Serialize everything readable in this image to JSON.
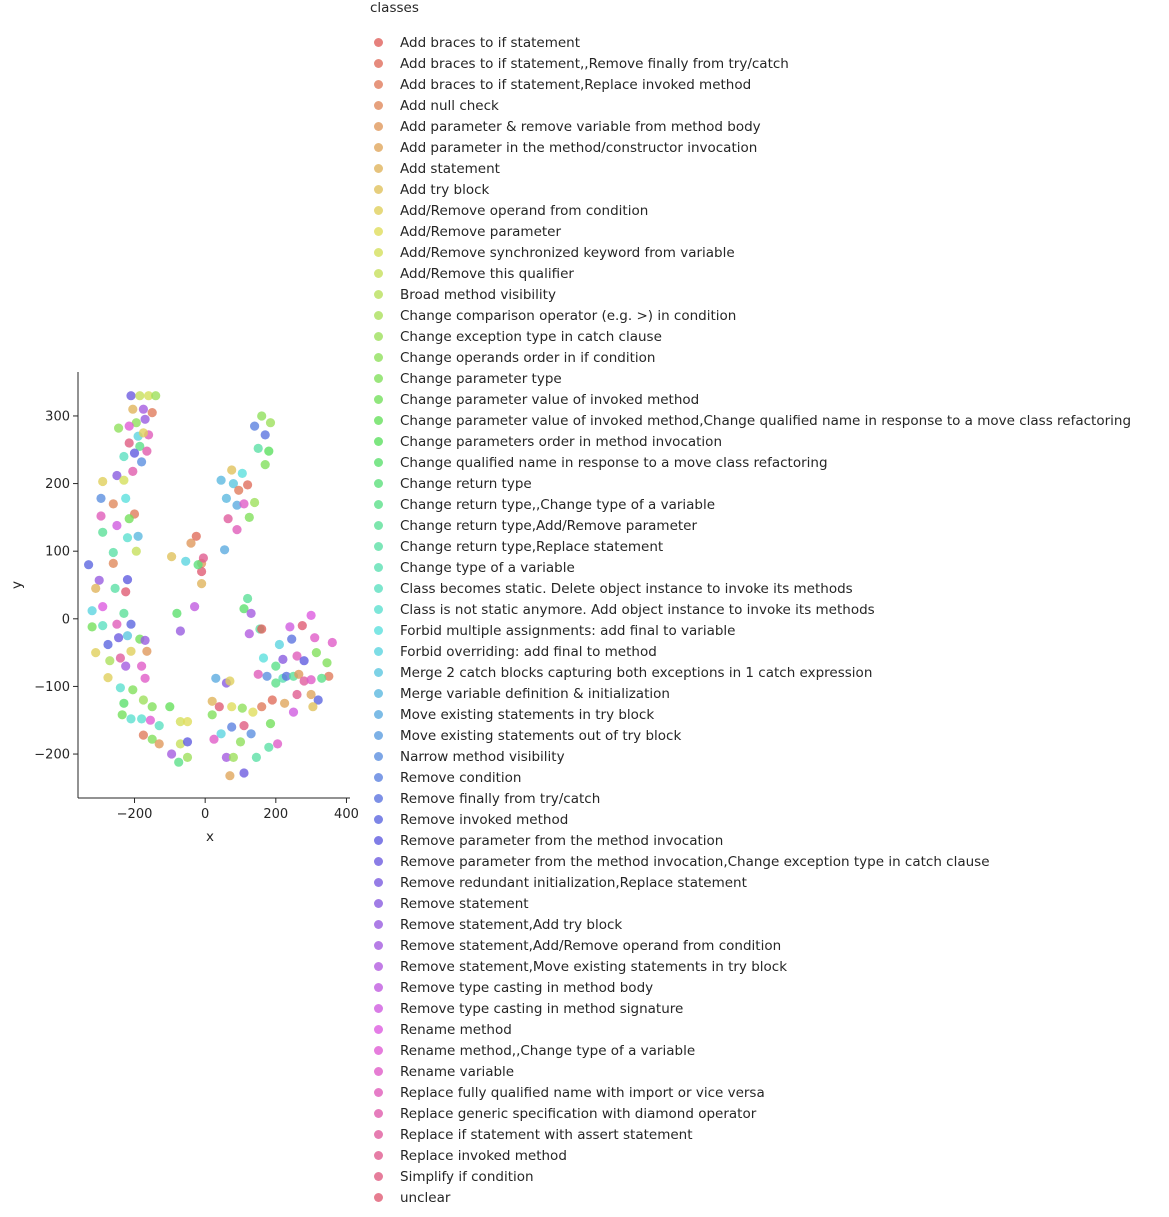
{
  "chart_data": {
    "type": "scatter",
    "title": "",
    "xlabel": "x",
    "ylabel": "y",
    "xlim": [
      -360,
      410
    ],
    "ylim": [
      -265,
      365
    ],
    "xticks": [
      -200,
      0,
      200,
      400
    ],
    "yticks": [
      -200,
      -100,
      0,
      100,
      200,
      300
    ],
    "grid": false,
    "legend": {
      "title": "classes",
      "placement": "right",
      "entries": [
        "Add braces to if statement",
        "Add braces to if statement,,Remove finally from try/catch",
        "Add braces to if statement,Replace invoked method",
        "Add null check",
        "Add parameter & remove variable from method body",
        "Add parameter in the method/constructor invocation",
        "Add statement",
        "Add try block",
        "Add/Remove operand from condition",
        "Add/Remove parameter",
        "Add/Remove synchronized keyword from variable",
        "Add/Remove this qualifier",
        "Broad method visibility",
        "Change comparison operator (e.g. >) in condition",
        "Change exception type in catch clause",
        "Change operands order in if condition",
        "Change parameter type",
        "Change parameter value of invoked method",
        "Change parameter value of invoked method,Change qualified name in response to a move class refactoring",
        "Change parameters order in method invocation",
        "Change qualified name in response to a move class refactoring",
        "Change return type",
        "Change return type,,Change type of a variable",
        "Change return type,Add/Remove parameter",
        "Change return type,Replace statement",
        "Change type of a variable",
        "Class becomes static. Delete object instance to invoke its methods",
        "Class is not static anymore. Add object instance to invoke its methods",
        "Forbid multiple assignments: add final to variable",
        "Forbid overriding: add final to method",
        "Merge 2 catch blocks capturing both exceptions in 1 catch expression",
        "Merge variable definition & initialization",
        "Move existing statements in try block",
        "Move existing statements out of try block",
        "Narrow method visibility",
        "Remove condition",
        "Remove finally from try/catch",
        "Remove invoked method",
        "Remove parameter from the method invocation",
        "Remove parameter from the method invocation,Change exception type in catch clause",
        "Remove redundant initialization,Replace statement",
        "Remove statement",
        "Remove statement,Add try block",
        "Remove statement,Add/Remove operand from condition",
        "Remove statement,Move existing statements in try block",
        "Remove type casting in method body",
        "Remove type casting in method signature",
        "Rename method",
        "Rename method,,Change type of a variable",
        "Rename variable",
        "Replace fully qualified name with import or vice versa",
        "Replace generic specification with diamond operator",
        "Replace if statement with assert statement",
        "Replace invoked method",
        "Simplify if condition",
        "unclear"
      ]
    },
    "points": [
      [
        -210,
        330
      ],
      [
        -185,
        330
      ],
      [
        -160,
        330
      ],
      [
        -140,
        330
      ],
      [
        -205,
        310
      ],
      [
        -175,
        310
      ],
      [
        -150,
        305
      ],
      [
        -195,
        290
      ],
      [
        -215,
        285
      ],
      [
        -170,
        295
      ],
      [
        -245,
        282
      ],
      [
        -190,
        270
      ],
      [
        -160,
        272
      ],
      [
        -175,
        275
      ],
      [
        -215,
        260
      ],
      [
        -185,
        255
      ],
      [
        -165,
        248
      ],
      [
        -200,
        245
      ],
      [
        -230,
        240
      ],
      [
        -180,
        232
      ],
      [
        -205,
        218
      ],
      [
        -250,
        212
      ],
      [
        -230,
        205
      ],
      [
        -290,
        203
      ],
      [
        -260,
        170
      ],
      [
        -225,
        178
      ],
      [
        -295,
        178
      ],
      [
        -200,
        155
      ],
      [
        -295,
        152
      ],
      [
        -250,
        138
      ],
      [
        -215,
        148
      ],
      [
        -290,
        128
      ],
      [
        -220,
        120
      ],
      [
        -190,
        122
      ],
      [
        -195,
        100
      ],
      [
        -260,
        98
      ],
      [
        -300,
        57
      ],
      [
        -220,
        58
      ],
      [
        -260,
        82
      ],
      [
        -330,
        80
      ],
      [
        -310,
        45
      ],
      [
        -255,
        45
      ],
      [
        -225,
        40
      ],
      [
        -320,
        12
      ],
      [
        -290,
        18
      ],
      [
        -230,
        8
      ],
      [
        -320,
        -12
      ],
      [
        -290,
        -10
      ],
      [
        -250,
        -8
      ],
      [
        -210,
        -8
      ],
      [
        -245,
        -28
      ],
      [
        -220,
        -25
      ],
      [
        -310,
        -50
      ],
      [
        -275,
        -38
      ],
      [
        -185,
        -30
      ],
      [
        -170,
        -32
      ],
      [
        -240,
        -58
      ],
      [
        -270,
        -62
      ],
      [
        -210,
        -48
      ],
      [
        -180,
        -70
      ],
      [
        -275,
        -87
      ],
      [
        -225,
        -70
      ],
      [
        -165,
        -48
      ],
      [
        -240,
        -102
      ],
      [
        -205,
        -105
      ],
      [
        -170,
        -88
      ],
      [
        -175,
        -120
      ],
      [
        -230,
        -125
      ],
      [
        -150,
        -130
      ],
      [
        -100,
        -130
      ],
      [
        -235,
        -142
      ],
      [
        -210,
        -148
      ],
      [
        -180,
        -148
      ],
      [
        -155,
        -150
      ],
      [
        -130,
        -158
      ],
      [
        -70,
        -152
      ],
      [
        -50,
        -152
      ],
      [
        -175,
        -172
      ],
      [
        -150,
        -178
      ],
      [
        -130,
        -185
      ],
      [
        -70,
        -185
      ],
      [
        -50,
        -182
      ],
      [
        -95,
        -200
      ],
      [
        -50,
        -205
      ],
      [
        -75,
        -212
      ],
      [
        -95,
        92
      ],
      [
        -55,
        85
      ],
      [
        -40,
        112
      ],
      [
        -25,
        122
      ],
      [
        -10,
        82
      ],
      [
        -10,
        70
      ],
      [
        -20,
        80
      ],
      [
        -5,
        90
      ],
      [
        -10,
        52
      ],
      [
        -70,
        -18
      ],
      [
        -30,
        18
      ],
      [
        -80,
        8
      ],
      [
        45,
        205
      ],
      [
        55,
        102
      ],
      [
        60,
        178
      ],
      [
        65,
        148
      ],
      [
        75,
        220
      ],
      [
        80,
        200
      ],
      [
        90,
        168
      ],
      [
        95,
        190
      ],
      [
        105,
        215
      ],
      [
        110,
        170
      ],
      [
        120,
        198
      ],
      [
        125,
        150
      ],
      [
        140,
        285
      ],
      [
        140,
        172
      ],
      [
        150,
        252
      ],
      [
        160,
        300
      ],
      [
        170,
        228
      ],
      [
        170,
        272
      ],
      [
        180,
        248
      ],
      [
        185,
        290
      ],
      [
        90,
        132
      ],
      [
        110,
        15
      ],
      [
        120,
        30
      ],
      [
        130,
        8
      ],
      [
        125,
        -22
      ],
      [
        155,
        -15
      ],
      [
        160,
        -15
      ],
      [
        210,
        -38
      ],
      [
        220,
        -60
      ],
      [
        245,
        -30
      ],
      [
        260,
        -55
      ],
      [
        280,
        -62
      ],
      [
        300,
        5
      ],
      [
        310,
        -28
      ],
      [
        315,
        -50
      ],
      [
        240,
        -12
      ],
      [
        275,
        -10
      ],
      [
        360,
        -35
      ],
      [
        345,
        -65
      ],
      [
        350,
        -85
      ],
      [
        320,
        -120
      ],
      [
        300,
        -112
      ],
      [
        305,
        -130
      ],
      [
        220,
        -88
      ],
      [
        230,
        -85
      ],
      [
        250,
        -85
      ],
      [
        265,
        -82
      ],
      [
        280,
        -92
      ],
      [
        300,
        -90
      ],
      [
        330,
        -88
      ],
      [
        200,
        -70
      ],
      [
        190,
        -120
      ],
      [
        175,
        -85
      ],
      [
        160,
        -130
      ],
      [
        165,
        -58
      ],
      [
        200,
        -95
      ],
      [
        225,
        -125
      ],
      [
        250,
        -138
      ],
      [
        260,
        -112
      ],
      [
        185,
        -155
      ],
      [
        205,
        -185
      ],
      [
        180,
        -190
      ],
      [
        150,
        -82
      ],
      [
        30,
        -88
      ],
      [
        60,
        -95
      ],
      [
        70,
        -92
      ],
      [
        20,
        -122
      ],
      [
        40,
        -130
      ],
      [
        75,
        -130
      ],
      [
        105,
        -132
      ],
      [
        135,
        -138
      ],
      [
        20,
        -142
      ],
      [
        45,
        -170
      ],
      [
        75,
        -160
      ],
      [
        110,
        -158
      ],
      [
        130,
        -170
      ],
      [
        100,
        -182
      ],
      [
        25,
        -178
      ],
      [
        60,
        -205
      ],
      [
        80,
        -205
      ],
      [
        145,
        -205
      ],
      [
        110,
        -228
      ],
      [
        70,
        -232
      ]
    ]
  }
}
